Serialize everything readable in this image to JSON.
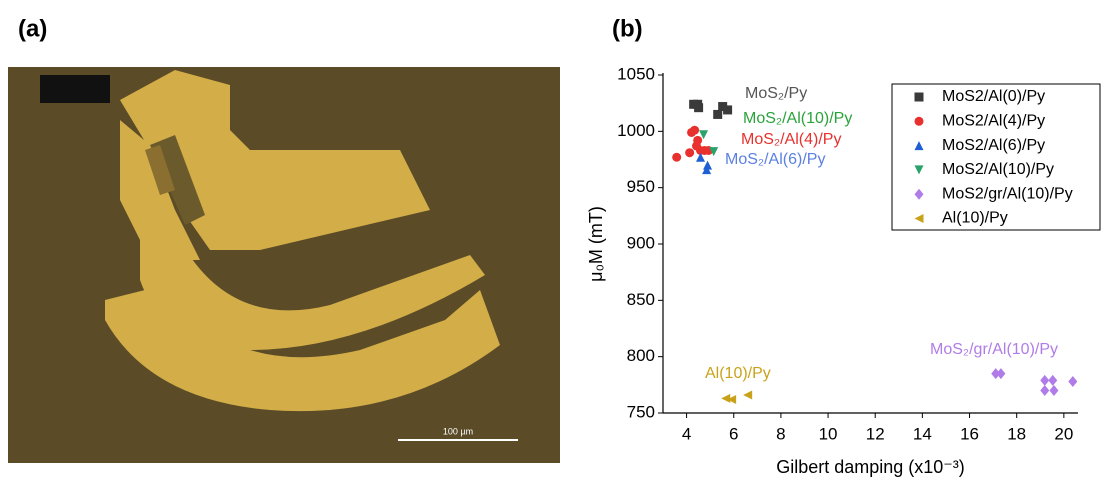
{
  "panel_a": {
    "label": "(a)",
    "scale_bar": "100 µm"
  },
  "chart_data": {
    "type": "scatter",
    "label": "(b)",
    "x_label": "Gilbert damping (x10⁻³)",
    "y_label": "μ₀M (mT)",
    "xlim": [
      3,
      20.6
    ],
    "xticks": [
      4,
      6,
      8,
      10,
      12,
      14,
      16,
      18,
      20
    ],
    "ylim": [
      750,
      1050
    ],
    "yticks": [
      750,
      800,
      850,
      900,
      950,
      1000,
      1050
    ],
    "grid": false,
    "legend": "upper right",
    "series": [
      {
        "name": "MoS2/Al(0)/Py",
        "color": "#3a3a3a",
        "marker": "square",
        "x": [
          4.3,
          4.47,
          5.53,
          5.74,
          5.32,
          4.51
        ],
        "values": [
          1024,
          1024,
          1022,
          1019,
          1015,
          1021
        ]
      },
      {
        "name": "MoS2/Al(4)/Py",
        "color": "#e8312e",
        "marker": "circle",
        "x": [
          3.58,
          4.13,
          4.34,
          4.21,
          4.42,
          4.59,
          4.76,
          4.93,
          4.47
        ],
        "values": [
          977,
          981,
          1001,
          999,
          987,
          983,
          983,
          983,
          992
        ]
      },
      {
        "name": "MoS2/Al(6)/Py",
        "color": "#1f5fd4",
        "marker": "triangle-up",
        "x": [
          4.59,
          4.85,
          4.89
        ],
        "values": [
          977,
          966,
          970
        ]
      },
      {
        "name": "MoS2/Al(10)/Py",
        "color": "#2aa36b",
        "marker": "triangle-down",
        "x": [
          4.72,
          5.15
        ],
        "values": [
          997,
          982
        ]
      },
      {
        "name": "MoS2/gr/Al(10)/Py",
        "color": "#b07ce8",
        "marker": "diamond",
        "x": [
          17.11,
          17.33,
          19.19,
          19.53,
          19.19,
          19.58,
          20.38
        ],
        "values": [
          785,
          785,
          779,
          779,
          770,
          770,
          778
        ]
      },
      {
        "name": "Al(10)/Py",
        "color": "#c9a21a",
        "marker": "triangle-left",
        "x": [
          5.66,
          5.91,
          6.59
        ],
        "values": [
          763,
          762,
          766
        ]
      }
    ],
    "annotations": [
      "MoS₂/Py",
      "MoS₂/Al(10)/Py",
      "MoS₂/Al(4)/Py",
      "MoS₂/Al(6)/Py",
      "MoS₂/gr/Al(10)/Py",
      "Al(10)/Py"
    ]
  }
}
